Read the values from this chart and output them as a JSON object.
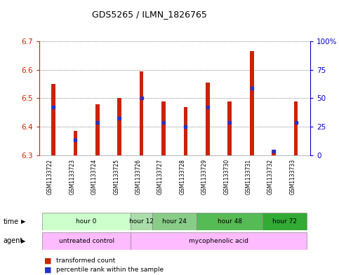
{
  "title": "GDS5265 / ILMN_1826765",
  "samples": [
    "GSM1133722",
    "GSM1133723",
    "GSM1133724",
    "GSM1133725",
    "GSM1133726",
    "GSM1133727",
    "GSM1133728",
    "GSM1133729",
    "GSM1133730",
    "GSM1133731",
    "GSM1133732",
    "GSM1133733"
  ],
  "bar_bottoms": [
    6.3,
    6.3,
    6.3,
    6.3,
    6.3,
    6.3,
    6.3,
    6.3,
    6.3,
    6.3,
    6.3,
    6.3
  ],
  "bar_tops": [
    6.55,
    6.385,
    6.48,
    6.5,
    6.595,
    6.49,
    6.47,
    6.555,
    6.49,
    6.665,
    6.32,
    6.49
  ],
  "blue_marker_values": [
    6.47,
    6.355,
    6.415,
    6.43,
    6.5,
    6.415,
    6.4,
    6.47,
    6.415,
    6.535,
    6.315,
    6.415
  ],
  "ylim_left": [
    6.3,
    6.7
  ],
  "ylim_right": [
    0,
    100
  ],
  "yticks_left": [
    6.3,
    6.4,
    6.5,
    6.6,
    6.7
  ],
  "yticks_right": [
    0,
    25,
    50,
    75,
    100
  ],
  "ytick_labels_right": [
    "0",
    "25",
    "50",
    "75",
    "100%"
  ],
  "bar_color": "#cc2200",
  "blue_color": "#2233cc",
  "time_groups": [
    {
      "label": "hour 0",
      "start": 0,
      "end": 3,
      "color": "#ccffcc"
    },
    {
      "label": "hour 12",
      "start": 4,
      "end": 4,
      "color": "#aaddaa"
    },
    {
      "label": "hour 24",
      "start": 5,
      "end": 6,
      "color": "#88cc88"
    },
    {
      "label": "hour 48",
      "start": 7,
      "end": 9,
      "color": "#55bb55"
    },
    {
      "label": "hour 72",
      "start": 10,
      "end": 11,
      "color": "#33aa33"
    }
  ],
  "agent_groups": [
    {
      "label": "untreated control",
      "start": 0,
      "end": 3,
      "color": "#ffbbff"
    },
    {
      "label": "mycophenolic acid",
      "start": 4,
      "end": 11,
      "color": "#ffbbff"
    }
  ],
  "grid_color": "#555555",
  "bg_color": "#ffffff",
  "plot_bg": "#ffffff",
  "bar_width": 0.18
}
